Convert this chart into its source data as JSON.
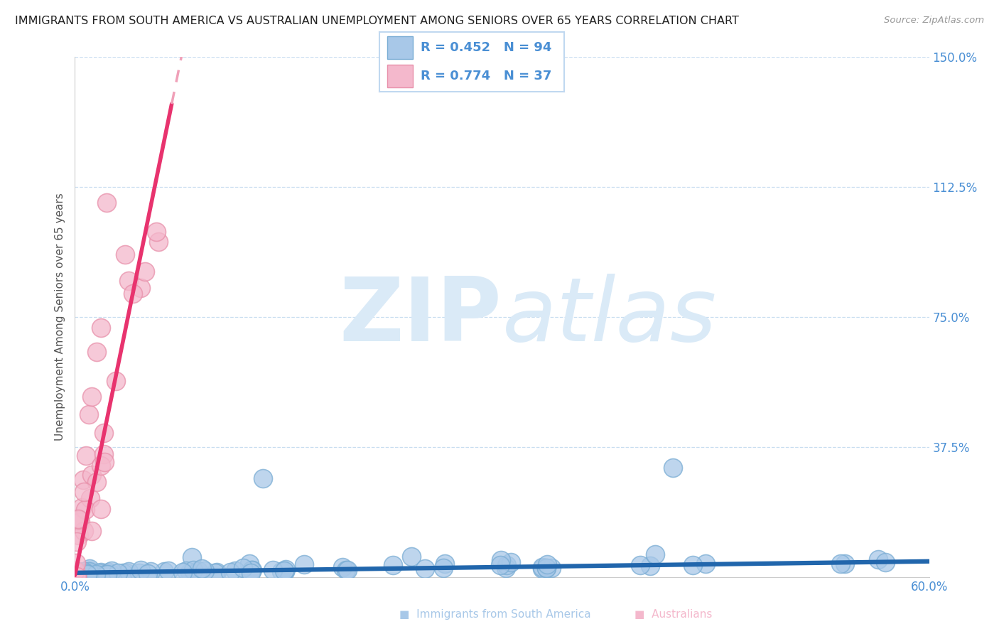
{
  "title": "IMMIGRANTS FROM SOUTH AMERICA VS AUSTRALIAN UNEMPLOYMENT AMONG SENIORS OVER 65 YEARS CORRELATION CHART",
  "source": "Source: ZipAtlas.com",
  "ylabel": "Unemployment Among Seniors over 65 years",
  "xmin": 0.0,
  "xmax": 0.6,
  "ymin": 0.0,
  "ymax": 1.5,
  "yticks": [
    0.0,
    0.375,
    0.75,
    1.125,
    1.5
  ],
  "ytick_labels": [
    "",
    "37.5%",
    "75.0%",
    "112.5%",
    "150.0%"
  ],
  "xtick_vals": [
    0.0,
    0.6
  ],
  "xtick_labels": [
    "0.0%",
    "60.0%"
  ],
  "blue_R": 0.452,
  "blue_N": 94,
  "pink_R": 0.774,
  "pink_N": 37,
  "blue_color": "#a8c8e8",
  "blue_edge_color": "#7aadd4",
  "pink_color": "#f4b8cc",
  "pink_edge_color": "#e890aa",
  "blue_line_color": "#2166ac",
  "pink_line_color": "#e8336e",
  "pink_dash_color": "#f0a0b8",
  "watermark_zip": "ZIP",
  "watermark_atlas": "atlas",
  "watermark_color": "#daeaf7",
  "grid_color": "#c8ddf0",
  "title_color": "#222222",
  "axis_label_color": "#4a8fd4",
  "legend_border_color": "#c0d8f0",
  "source_color": "#999999",
  "ylabel_color": "#555555"
}
